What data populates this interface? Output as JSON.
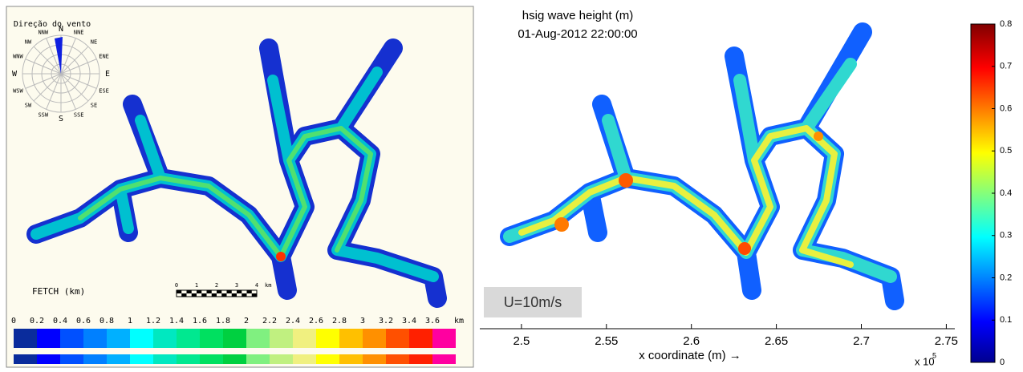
{
  "left_panel": {
    "wind_rose": {
      "title": "Direção do vento",
      "directions": [
        "N",
        "NNE",
        "NE",
        "ENE",
        "E",
        "ESE",
        "SE",
        "SSE",
        "S",
        "SSW",
        "SW",
        "WSW",
        "W",
        "WNW",
        "NW",
        "NNW"
      ],
      "wedge_color": "#1020e0"
    },
    "scale_bar": {
      "ticks": [
        0,
        1,
        2,
        3,
        4
      ],
      "unit": "km"
    },
    "legend_title": "FETCH (km)",
    "legend": {
      "ticks": [
        0,
        0.2,
        0.4,
        0.6,
        0.8,
        1,
        1.2,
        1.4,
        1.6,
        1.8,
        2,
        2.2,
        2.4,
        2.6,
        2.8,
        3,
        3.2,
        3.4,
        3.6
      ],
      "unit": "km",
      "colors": [
        "#0a2c9c",
        "#0000ff",
        "#0050ff",
        "#0080ff",
        "#00b0ff",
        "#00ffff",
        "#00e8c0",
        "#00e890",
        "#00e060",
        "#00d040",
        "#80f080",
        "#c0f080",
        "#f0f080",
        "#ffff00",
        "#ffc000",
        "#ff9000",
        "#ff5000",
        "#ff2000",
        "#ff00a0"
      ]
    }
  },
  "right_panel": {
    "title": [
      "hsig wave height (m)",
      "01-Aug-2012 22:00:00"
    ],
    "annotation": "U=10m/s",
    "x_axis": {
      "label": "x coordinate (m) →",
      "ticks": [
        2.5,
        2.55,
        2.6,
        2.65,
        2.7,
        2.75
      ],
      "xlim": [
        2.4755,
        2.755
      ],
      "multiplier": "x 10",
      "exponent": "5"
    },
    "colorbar": {
      "ticks": [
        0,
        0.1,
        0.2,
        0.3,
        0.4,
        0.5,
        0.6,
        0.7,
        0.8
      ],
      "ylim": [
        0,
        0.8
      ]
    }
  }
}
